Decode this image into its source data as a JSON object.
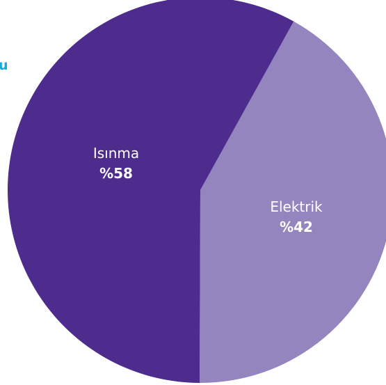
{
  "edge_text": "u",
  "colors": {
    "edge_text": "#14a8e0",
    "label": "#ffffff"
  },
  "chart_data": {
    "type": "pie",
    "slices": [
      {
        "label": "Isınma",
        "value": 58,
        "value_label": "%58",
        "color": "#4e2c8e"
      },
      {
        "label": "Elektrik",
        "value": 42,
        "value_label": "%42",
        "color": "#9585be"
      }
    ],
    "legend": "none"
  }
}
